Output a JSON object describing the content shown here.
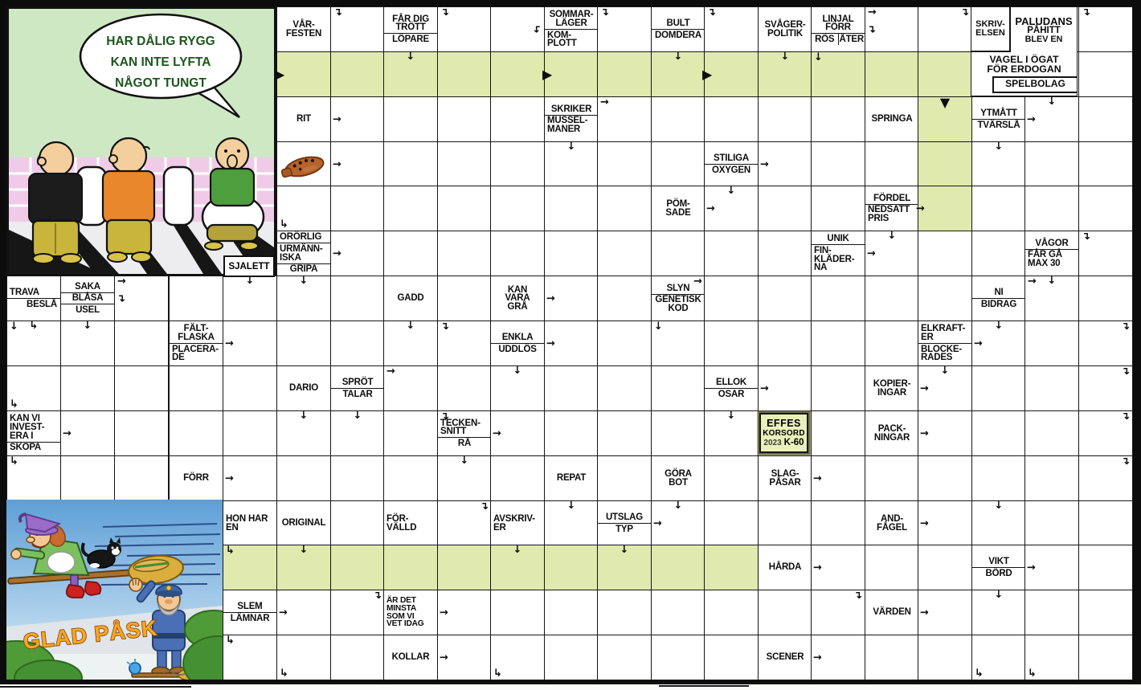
{
  "puzzle": {
    "type": "swedish-crossword",
    "colors": {
      "green_cell": "#e0e9ae",
      "grid_line": "#161616",
      "logo_bg": "#e9f0bb"
    }
  },
  "comic_top": {
    "bubble_lines": [
      "HAR DÅLIG RYGG",
      "KAN INTE LYFTA",
      "NÅGOT TUNGT"
    ]
  },
  "comic_bottom": {
    "caption": "GLAD PÅSK"
  },
  "corner_label": "SJALETT",
  "logo": {
    "line1": "EFFES",
    "line2": "KORSORD",
    "year": "2023",
    "code": "K-60"
  },
  "paludans_block": {
    "skriv": [
      "SKRIV-",
      "ELSEN"
    ],
    "main": [
      "PALUDANS",
      "PÅHITT",
      "BLEV EN"
    ],
    "vagel": [
      "VAGEL I ÖGAT",
      "FÖR ERDOGAN"
    ],
    "spel": "SPELBOLAG"
  },
  "main_clues": [
    {
      "c": 0,
      "r": 0,
      "parts": [
        {
          "lines": [
            "VÅR-",
            "FESTEN"
          ]
        }
      ]
    },
    {
      "c": 2,
      "r": 0,
      "parts": [
        {
          "lines": [
            "FÅR DIG",
            "TRÖTT"
          ]
        },
        {
          "lines": [
            "LÖPARE"
          ]
        }
      ]
    },
    {
      "c": 5,
      "r": 0,
      "parts": [
        {
          "lines": [
            "SOMMAR-",
            "LÄGER"
          ]
        },
        {
          "lines": [
            "KOM-",
            "PLOTT"
          ],
          "align": "l"
        }
      ]
    },
    {
      "c": 7,
      "r": 0,
      "parts": [
        {
          "lines": [
            "BULT"
          ]
        },
        {
          "lines": [
            "DOMDERA"
          ]
        }
      ]
    },
    {
      "c": 9,
      "r": 0,
      "parts": [
        {
          "lines": [
            "SVÅGER-",
            "POLITIK"
          ]
        }
      ]
    },
    {
      "c": 10,
      "r": 0,
      "parts": [
        {
          "lines": [
            "LINJAL",
            "FÖRR"
          ]
        },
        {
          "split": [
            "RÖS",
            "ÅTER"
          ]
        }
      ]
    },
    {
      "c": 0,
      "r": 2,
      "parts": [
        {
          "lines": [
            "RIT"
          ]
        }
      ]
    },
    {
      "c": 5,
      "r": 2,
      "parts": [
        {
          "lines": [
            "SKRIKER"
          ]
        },
        {
          "lines": [
            "MUSSEL-",
            "MANER"
          ],
          "align": "l"
        }
      ]
    },
    {
      "c": 11,
      "r": 2,
      "parts": [
        {
          "lines": [
            "SPRINGA"
          ]
        }
      ]
    },
    {
      "c": 13,
      "r": 2,
      "parts": [
        {
          "lines": [
            "YTMÅTT"
          ]
        },
        {
          "lines": [
            "TVÄRSLÅ"
          ]
        }
      ]
    },
    {
      "c": 8,
      "r": 3,
      "parts": [
        {
          "lines": [
            "STILIGA"
          ]
        },
        {
          "lines": [
            "OXYGEN"
          ]
        }
      ]
    },
    {
      "c": 7,
      "r": 4,
      "parts": [
        {
          "lines": [
            "PÖM-",
            "SADE"
          ]
        }
      ]
    },
    {
      "c": 11,
      "r": 4,
      "parts": [
        {
          "lines": [
            "FÖRDEL"
          ]
        },
        {
          "lines": [
            "NEDSATT",
            "PRIS"
          ],
          "align": "l"
        }
      ]
    },
    {
      "c": 0,
      "r": 5,
      "parts": [
        {
          "lines": [
            "ORÖRLIG"
          ],
          "align": "l"
        },
        {
          "lines": [
            "URMÄNN-",
            "ISKA"
          ],
          "align": "l"
        },
        {
          "lines": [
            "GRIPA"
          ]
        }
      ]
    },
    {
      "c": 10,
      "r": 5,
      "parts": [
        {
          "lines": [
            "UNIK"
          ]
        },
        {
          "lines": [
            "FIN-",
            "KLÄDER-",
            "NA"
          ],
          "align": "l"
        }
      ]
    },
    {
      "c": 14,
      "r": 5,
      "parts": [
        {
          "lines": [
            "VÅGOR"
          ]
        },
        {
          "lines": [
            "FÅR GÅ",
            "MAX 30"
          ],
          "align": "l"
        }
      ]
    },
    {
      "c": 2,
      "r": 6,
      "parts": [
        {
          "lines": [
            "GADD"
          ]
        }
      ]
    },
    {
      "c": 4,
      "r": 6,
      "parts": [
        {
          "lines": [
            "KAN",
            "VARA",
            "GRÅ"
          ]
        }
      ]
    },
    {
      "c": 7,
      "r": 6,
      "parts": [
        {
          "lines": [
            "SLYN"
          ]
        },
        {
          "lines": [
            "GENETISK",
            "KOD"
          ]
        }
      ]
    },
    {
      "c": 13,
      "r": 6,
      "parts": [
        {
          "lines": [
            "NI"
          ]
        },
        {
          "lines": [
            "BIDRAG"
          ]
        }
      ]
    },
    {
      "c": 4,
      "r": 7,
      "parts": [
        {
          "lines": [
            "ENKLA"
          ]
        },
        {
          "lines": [
            "UDDLÖS"
          ]
        }
      ]
    },
    {
      "c": 12,
      "r": 7,
      "parts": [
        {
          "lines": [
            "ELKRAFT-",
            "ER"
          ],
          "align": "l"
        },
        {
          "lines": [
            "BLOCKE-",
            "RADES"
          ],
          "align": "l"
        }
      ]
    },
    {
      "c": 0,
      "r": 8,
      "parts": [
        {
          "lines": [
            "DARIO"
          ]
        }
      ]
    },
    {
      "c": 1,
      "r": 8,
      "parts": [
        {
          "lines": [
            "SPRÖT"
          ]
        },
        {
          "lines": [
            "TALAR"
          ]
        }
      ]
    },
    {
      "c": 8,
      "r": 8,
      "parts": [
        {
          "lines": [
            "ELLOK"
          ]
        },
        {
          "lines": [
            "OSAR"
          ]
        }
      ]
    },
    {
      "c": 11,
      "r": 8,
      "parts": [
        {
          "lines": [
            "KOPIER-",
            "INGAR"
          ]
        }
      ]
    },
    {
      "c": 3,
      "r": 9,
      "parts": [
        {
          "lines": [
            "TECKEN-",
            "SNITT"
          ],
          "align": "l"
        },
        {
          "lines": [
            "RÅ"
          ]
        }
      ]
    },
    {
      "c": 11,
      "r": 9,
      "parts": [
        {
          "lines": [
            "PACK-",
            "NINGAR"
          ]
        }
      ]
    },
    {
      "c": 5,
      "r": 10,
      "parts": [
        {
          "lines": [
            "REPAT"
          ]
        }
      ]
    },
    {
      "c": 7,
      "r": 10,
      "parts": [
        {
          "lines": [
            "GÖRA",
            "BOT"
          ]
        }
      ]
    },
    {
      "c": 9,
      "r": 10,
      "parts": [
        {
          "lines": [
            "SLAG-",
            "PÅSAR"
          ]
        }
      ]
    },
    {
      "c": 0,
      "r": 11,
      "parts": [
        {
          "lines": [
            "ORIGINAL"
          ]
        }
      ]
    },
    {
      "c": 2,
      "r": 11,
      "parts": [
        {
          "lines": [
            "FÖR-",
            "VÄLLD"
          ],
          "align": "l"
        }
      ]
    },
    {
      "c": 4,
      "r": 11,
      "parts": [
        {
          "lines": [
            "AVSKRIV-",
            "ER"
          ],
          "align": "l"
        }
      ]
    },
    {
      "c": 6,
      "r": 11,
      "parts": [
        {
          "lines": [
            "UTSLAG"
          ]
        },
        {
          "lines": [
            "TYP"
          ]
        }
      ]
    },
    {
      "c": 11,
      "r": 11,
      "parts": [
        {
          "lines": [
            "AND-",
            "FÅGEL"
          ]
        }
      ]
    },
    {
      "c": 9,
      "r": 12,
      "parts": [
        {
          "lines": [
            "HÅRDA"
          ]
        }
      ]
    },
    {
      "c": 13,
      "r": 12,
      "parts": [
        {
          "lines": [
            "VIKT"
          ]
        },
        {
          "lines": [
            "BÖRD"
          ]
        }
      ]
    },
    {
      "c": 2,
      "r": 13,
      "parts": [
        {
          "lines": [
            "ÄR DET",
            "MINSTA",
            "SOM VI",
            "VET IDAG"
          ],
          "align": "l",
          "sm": true
        }
      ]
    },
    {
      "c": 11,
      "r": 13,
      "parts": [
        {
          "lines": [
            "VÄRDEN"
          ]
        }
      ]
    },
    {
      "c": 2,
      "r": 14,
      "parts": [
        {
          "lines": [
            "KOLLAR"
          ]
        }
      ]
    },
    {
      "c": 9,
      "r": 14,
      "parts": [
        {
          "lines": [
            "SCENER"
          ]
        }
      ]
    }
  ],
  "left_clues": [
    {
      "l": 0,
      "r": 6,
      "parts": [
        {
          "lines": [
            "TRAVA"
          ],
          "align": "l"
        },
        {
          "lines": [
            "BESLÅ"
          ],
          "align": "r"
        }
      ]
    },
    {
      "l": 1,
      "r": 6,
      "parts": [
        {
          "lines": [
            "SAKA"
          ]
        },
        {
          "lines": [
            "BLÅSA"
          ]
        },
        {
          "lines": [
            "USEL"
          ]
        }
      ]
    },
    {
      "l": 3,
      "r": 7,
      "parts": [
        {
          "lines": [
            "FÄLT-",
            "FLASKA"
          ]
        },
        {
          "lines": [
            "PLACERA-",
            "DE"
          ],
          "align": "l"
        }
      ]
    },
    {
      "l": 0,
      "r": 9,
      "parts": [
        {
          "lines": [
            "KAN VI",
            "INVEST-",
            "ERA I"
          ],
          "align": "l"
        },
        {
          "lines": [
            "SKOPA"
          ],
          "align": "l"
        }
      ]
    },
    {
      "l": 3,
      "r": 10,
      "parts": [
        {
          "lines": [
            "FÖRR"
          ]
        }
      ]
    },
    {
      "l": 4,
      "r": 11,
      "parts": [
        {
          "lines": [
            "HON HAR",
            "EN"
          ],
          "align": "l"
        }
      ]
    },
    {
      "l": 4,
      "r": 13,
      "parts": [
        {
          "lines": [
            "SLEM"
          ]
        },
        {
          "lines": [
            "LÄMNAR"
          ]
        }
      ]
    }
  ],
  "icons": [
    {
      "c": 0,
      "r": 3,
      "icon": "ocarina-icon"
    }
  ],
  "arrows": [
    {
      "c": 1,
      "r": 0,
      "g": "↴",
      "p": "tl"
    },
    {
      "c": 3,
      "r": 0,
      "g": "↴",
      "p": "tl"
    },
    {
      "c": 4,
      "r": 0,
      "g": "↴",
      "p": "mr",
      "f": true
    },
    {
      "c": 6,
      "r": 0,
      "g": "↴",
      "p": "tl"
    },
    {
      "c": 8,
      "r": 0,
      "g": "↴",
      "p": "tl"
    },
    {
      "c": 11,
      "r": 0,
      "g": "→",
      "p": "tl"
    },
    {
      "c": 11,
      "r": 0,
      "g": "↴",
      "p": "ml"
    },
    {
      "c": 12,
      "r": 0,
      "g": "↴",
      "p": "tr"
    },
    {
      "c": 15,
      "r": 0,
      "g": "↴",
      "p": "tl"
    },
    {
      "c": 0,
      "r": 1,
      "g": "▶",
      "p": "le"
    },
    {
      "c": 5,
      "r": 1,
      "g": "▶",
      "p": "le"
    },
    {
      "c": 8,
      "r": 1,
      "g": "▶",
      "p": "le"
    },
    {
      "c": 2,
      "r": 1,
      "g": "↓",
      "p": "tc"
    },
    {
      "c": 7,
      "r": 1,
      "g": "↓",
      "p": "tc"
    },
    {
      "c": 9,
      "r": 1,
      "g": "↓",
      "p": "tc"
    },
    {
      "c": 10,
      "r": 1,
      "g": "↓",
      "p": "tl"
    },
    {
      "c": 1,
      "r": 2,
      "g": "→",
      "p": "ml"
    },
    {
      "c": 6,
      "r": 2,
      "g": "→",
      "p": "tl"
    },
    {
      "c": 12,
      "r": 2,
      "g": "▼",
      "p": "tc"
    },
    {
      "c": 14,
      "r": 2,
      "g": "→",
      "p": "ml"
    },
    {
      "c": 14,
      "r": 2,
      "g": "↓",
      "p": "tc"
    },
    {
      "c": 1,
      "r": 3,
      "g": "→",
      "p": "ml"
    },
    {
      "c": 5,
      "r": 3,
      "g": "↓",
      "p": "tc"
    },
    {
      "c": 9,
      "r": 3,
      "g": "→",
      "p": "ml"
    },
    {
      "c": 13,
      "r": 3,
      "g": "↓",
      "p": "tc"
    },
    {
      "c": 0,
      "r": 4,
      "g": "↳",
      "p": "bl"
    },
    {
      "c": 8,
      "r": 4,
      "g": "↓",
      "p": "tc"
    },
    {
      "c": 8,
      "r": 4,
      "g": "→",
      "p": "ml"
    },
    {
      "c": 12,
      "r": 4,
      "g": "→",
      "p": "le"
    },
    {
      "c": 1,
      "r": 5,
      "g": "→",
      "p": "ml"
    },
    {
      "c": 11,
      "r": 5,
      "g": "↓",
      "p": "tc"
    },
    {
      "c": 11,
      "r": 5,
      "g": "→",
      "p": "ml"
    },
    {
      "c": 15,
      "r": 5,
      "g": "↴",
      "p": "tl"
    },
    {
      "c": 0,
      "r": 6,
      "g": "↓",
      "p": "tc"
    },
    {
      "l": 4,
      "r": 6,
      "g": "↓",
      "p": "tc"
    },
    {
      "l": 2,
      "r": 6,
      "g": "→",
      "p": "tl"
    },
    {
      "l": 2,
      "r": 6,
      "g": "↴",
      "p": "ml"
    },
    {
      "c": 5,
      "r": 6,
      "g": "→",
      "p": "ml"
    },
    {
      "c": 7,
      "r": 6,
      "g": "→",
      "p": "tr"
    },
    {
      "c": 14,
      "r": 6,
      "g": "→",
      "p": "tl"
    },
    {
      "c": 14,
      "r": 6,
      "g": "↓",
      "p": "tc"
    },
    {
      "l": 0,
      "r": 7,
      "g": "↓",
      "p": "tl"
    },
    {
      "l": 0,
      "r": 7,
      "g": "↳",
      "p": "tc"
    },
    {
      "l": 1,
      "r": 7,
      "g": "↓",
      "p": "tc"
    },
    {
      "l": 4,
      "r": 7,
      "g": "→",
      "p": "ml"
    },
    {
      "c": 2,
      "r": 7,
      "g": "↓",
      "p": "tc"
    },
    {
      "c": 3,
      "r": 7,
      "g": "↴",
      "p": "tl"
    },
    {
      "c": 5,
      "r": 7,
      "g": "→",
      "p": "ml"
    },
    {
      "c": 7,
      "r": 7,
      "g": "↓",
      "p": "tl"
    },
    {
      "c": 13,
      "r": 7,
      "g": "→",
      "p": "ml"
    },
    {
      "c": 13,
      "r": 7,
      "g": "↓",
      "p": "tc"
    },
    {
      "c": 15,
      "r": 7,
      "g": "↴",
      "p": "tr"
    },
    {
      "l": 0,
      "r": 8,
      "g": "↳",
      "p": "bl"
    },
    {
      "c": 2,
      "r": 8,
      "g": "→",
      "p": "tl"
    },
    {
      "c": 4,
      "r": 8,
      "g": "↓",
      "p": "tc"
    },
    {
      "c": 9,
      "r": 8,
      "g": "→",
      "p": "ml"
    },
    {
      "c": 12,
      "r": 8,
      "g": "→",
      "p": "ml"
    },
    {
      "c": 12,
      "r": 8,
      "g": "↓",
      "p": "tc"
    },
    {
      "c": 15,
      "r": 8,
      "g": "↴",
      "p": "tr"
    },
    {
      "l": 1,
      "r": 9,
      "g": "→",
      "p": "ml"
    },
    {
      "c": 0,
      "r": 9,
      "g": "↓",
      "p": "tc"
    },
    {
      "c": 1,
      "r": 9,
      "g": "↓",
      "p": "tc"
    },
    {
      "c": 3,
      "r": 9,
      "g": "↴",
      "p": "tl"
    },
    {
      "c": 4,
      "r": 9,
      "g": "→",
      "p": "ml"
    },
    {
      "c": 8,
      "r": 9,
      "g": "↓",
      "p": "tc"
    },
    {
      "c": 12,
      "r": 9,
      "g": "→",
      "p": "ml"
    },
    {
      "c": 15,
      "r": 9,
      "g": "↴",
      "p": "tr"
    },
    {
      "l": 0,
      "r": 10,
      "g": "↳",
      "p": "tl"
    },
    {
      "l": 4,
      "r": 10,
      "g": "→",
      "p": "ml"
    },
    {
      "c": 3,
      "r": 10,
      "g": "↓",
      "p": "tc"
    },
    {
      "c": 10,
      "r": 10,
      "g": "→",
      "p": "ml"
    },
    {
      "c": 15,
      "r": 10,
      "g": "↴",
      "p": "tr"
    },
    {
      "c": 3,
      "r": 11,
      "g": "↴",
      "p": "tr"
    },
    {
      "c": 5,
      "r": 11,
      "g": "↓",
      "p": "tc"
    },
    {
      "c": 7,
      "r": 11,
      "g": "→",
      "p": "ml"
    },
    {
      "c": 7,
      "r": 11,
      "g": "↓",
      "p": "tc"
    },
    {
      "c": 12,
      "r": 11,
      "g": "→",
      "p": "ml"
    },
    {
      "c": 13,
      "r": 11,
      "g": "↓",
      "p": "tc"
    },
    {
      "l": 4,
      "r": 12,
      "g": "↳",
      "p": "tl"
    },
    {
      "c": 0,
      "r": 12,
      "g": "↓",
      "p": "tc"
    },
    {
      "c": 4,
      "r": 12,
      "g": "↓",
      "p": "tc"
    },
    {
      "c": 6,
      "r": 12,
      "g": "↓",
      "p": "tc"
    },
    {
      "c": 10,
      "r": 12,
      "g": "→",
      "p": "ml"
    },
    {
      "c": 14,
      "r": 12,
      "g": "→",
      "p": "ml"
    },
    {
      "c": 0,
      "r": 13,
      "g": "→",
      "p": "ml"
    },
    {
      "c": 1,
      "r": 13,
      "g": "↴",
      "p": "tr"
    },
    {
      "c": 3,
      "r": 13,
      "g": "→",
      "p": "ml"
    },
    {
      "c": 10,
      "r": 13,
      "g": "↴",
      "p": "tr"
    },
    {
      "c": 12,
      "r": 13,
      "g": "→",
      "p": "ml"
    },
    {
      "c": 13,
      "r": 13,
      "g": "↓",
      "p": "tc"
    },
    {
      "l": 4,
      "r": 14,
      "g": "↳",
      "p": "tl"
    },
    {
      "c": 0,
      "r": 14,
      "g": "↳",
      "p": "bl"
    },
    {
      "c": 3,
      "r": 14,
      "g": "→",
      "p": "ml"
    },
    {
      "c": 4,
      "r": 14,
      "g": "↳",
      "p": "bl"
    },
    {
      "c": 10,
      "r": 14,
      "g": "→",
      "p": "ml"
    },
    {
      "c": 13,
      "r": 14,
      "g": "↳",
      "p": "bl"
    },
    {
      "c": 14,
      "r": 14,
      "g": "↳",
      "p": "bl"
    }
  ]
}
